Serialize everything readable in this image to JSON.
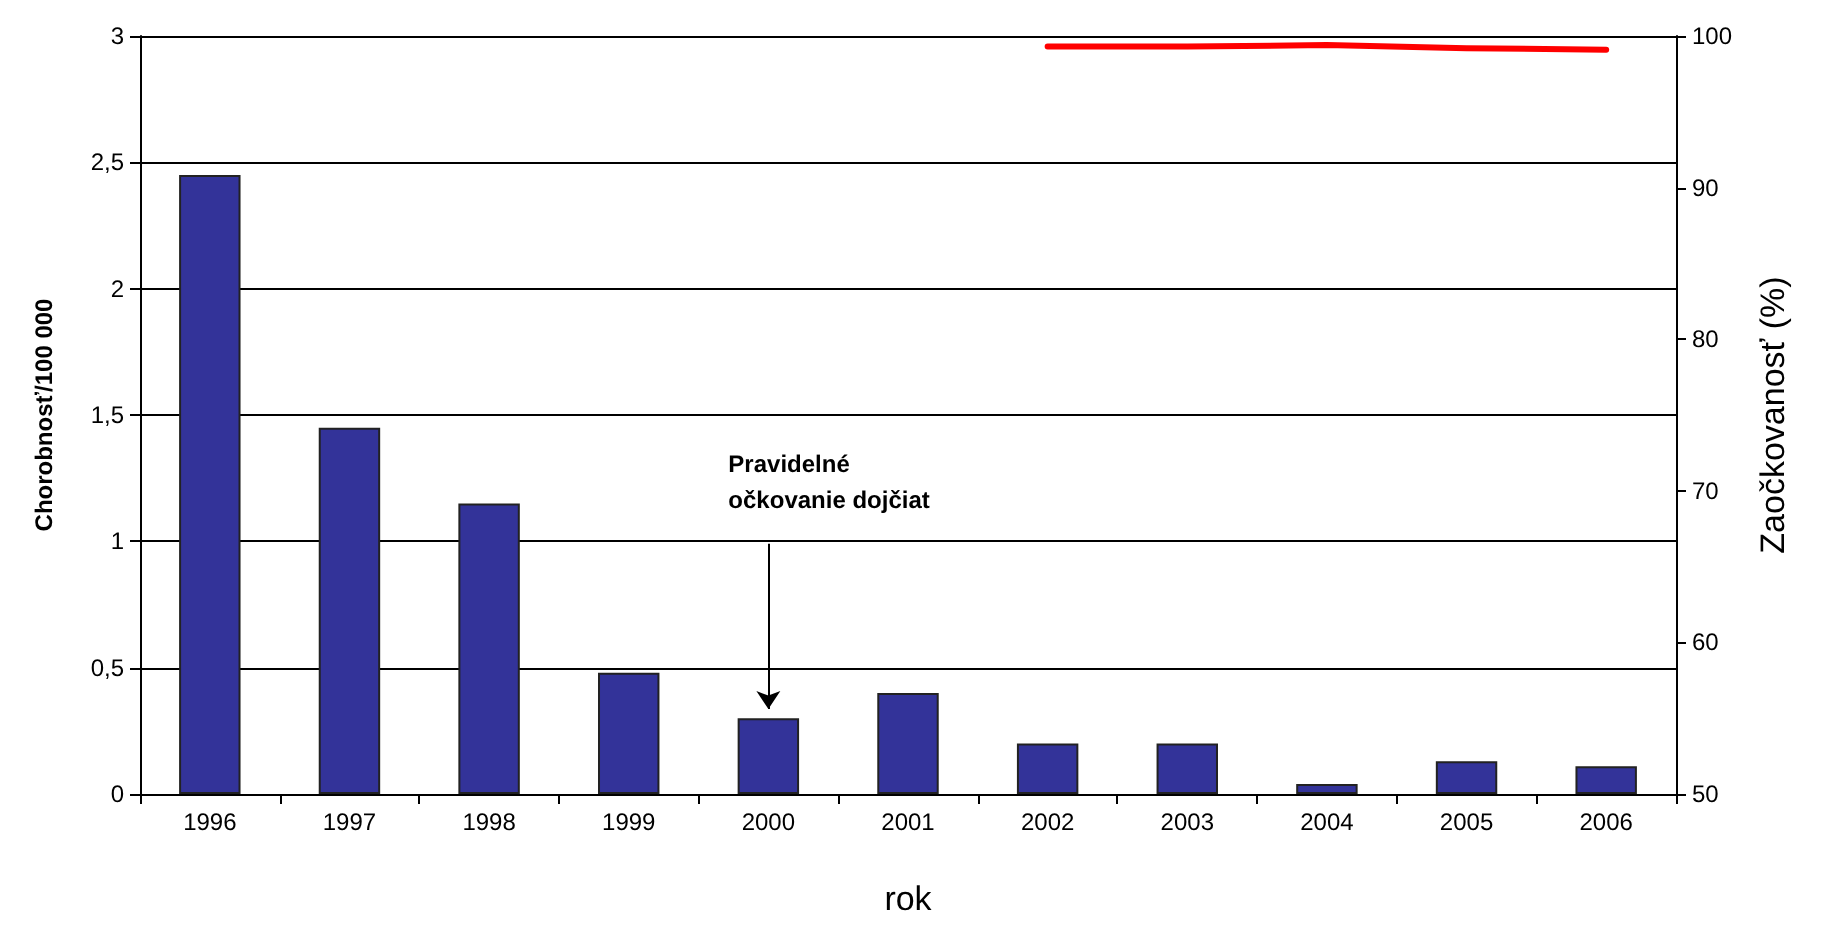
{
  "chart_data": {
    "type": "bar",
    "xlabel": "rok",
    "ylabel": "Chorobnosť/100 000",
    "y2label": "Zaočkovanosť (%)",
    "categories": [
      "1996",
      "1997",
      "1998",
      "1999",
      "2000",
      "2001",
      "2002",
      "2003",
      "2004",
      "2005",
      "2006"
    ],
    "series": [
      {
        "color": "#333399",
        "values": [
          2.45,
          1.45,
          1.15,
          0.48,
          0.3,
          0.4,
          0.2,
          0.2,
          0.04,
          0.13,
          0.11
        ]
      },
      {
        "type": "line",
        "axis": "y2",
        "color": "#ff0000",
        "marker": "none",
        "line_style": "solid",
        "values": [
          null,
          null,
          null,
          null,
          null,
          null,
          99.3,
          99.3,
          99.4,
          99.2,
          99.1
        ]
      }
    ],
    "ylim": [
      0,
      3
    ],
    "yticks": [
      0,
      {
        "value": 0.5,
        "label": "0,5"
      },
      1,
      {
        "value": 1.5,
        "label": "1,5"
      },
      2,
      {
        "value": 2.5,
        "label": "2,5"
      },
      3
    ],
    "y2lim": [
      50,
      100
    ],
    "y2ticks": [
      50,
      60,
      70,
      80,
      90,
      100
    ],
    "grid": "y",
    "annotations": [
      {
        "text": "Pravidelné\nočkovanie dojčiat",
        "x": "2000",
        "y": 0.3
      }
    ]
  }
}
